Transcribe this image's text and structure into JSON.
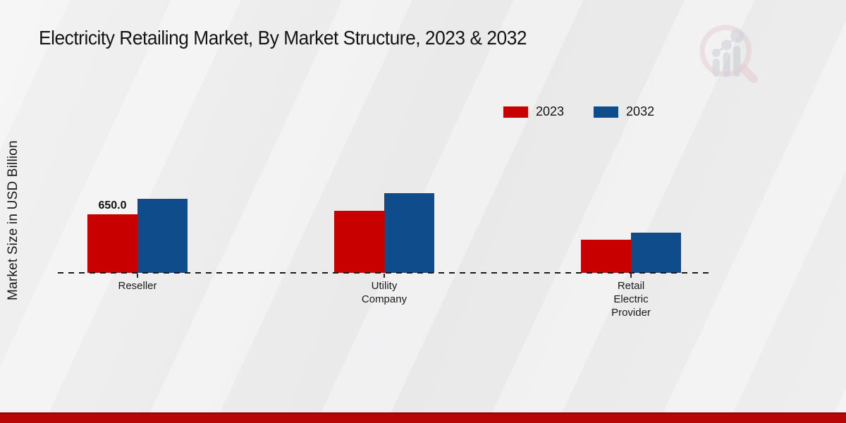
{
  "title": "Electricity Retailing Market, By Market Structure, 2023 & 2032",
  "axis": {
    "ylabel": "Market Size in USD Billion"
  },
  "legend": {
    "position": "top-right"
  },
  "footer": {
    "bar_color": "#b80505"
  },
  "watermark": {
    "icon": "magnifier-bar-chart-logo"
  },
  "chart_data": {
    "type": "bar",
    "title": "Electricity Retailing Market, By Market Structure, 2023 & 2032",
    "xlabel": "",
    "ylabel": "Market Size in USD Billion",
    "categories": [
      "Reseller",
      "Utility Company",
      "Retail Electric Provider"
    ],
    "series": [
      {
        "name": "2023",
        "color": "#c80000",
        "values": [
          650.0,
          690,
          370
        ]
      },
      {
        "name": "2032",
        "color": "#0e4c8c",
        "values": [
          820,
          885,
          445
        ]
      }
    ],
    "data_labels": [
      {
        "series_index": 0,
        "category_index": 0,
        "text": "650.0"
      }
    ],
    "ylim": [
      0,
      950
    ],
    "grid": false,
    "legend_position": "top-right",
    "baseline": {
      "style": "dashed",
      "color": "#1b1b1b"
    }
  }
}
